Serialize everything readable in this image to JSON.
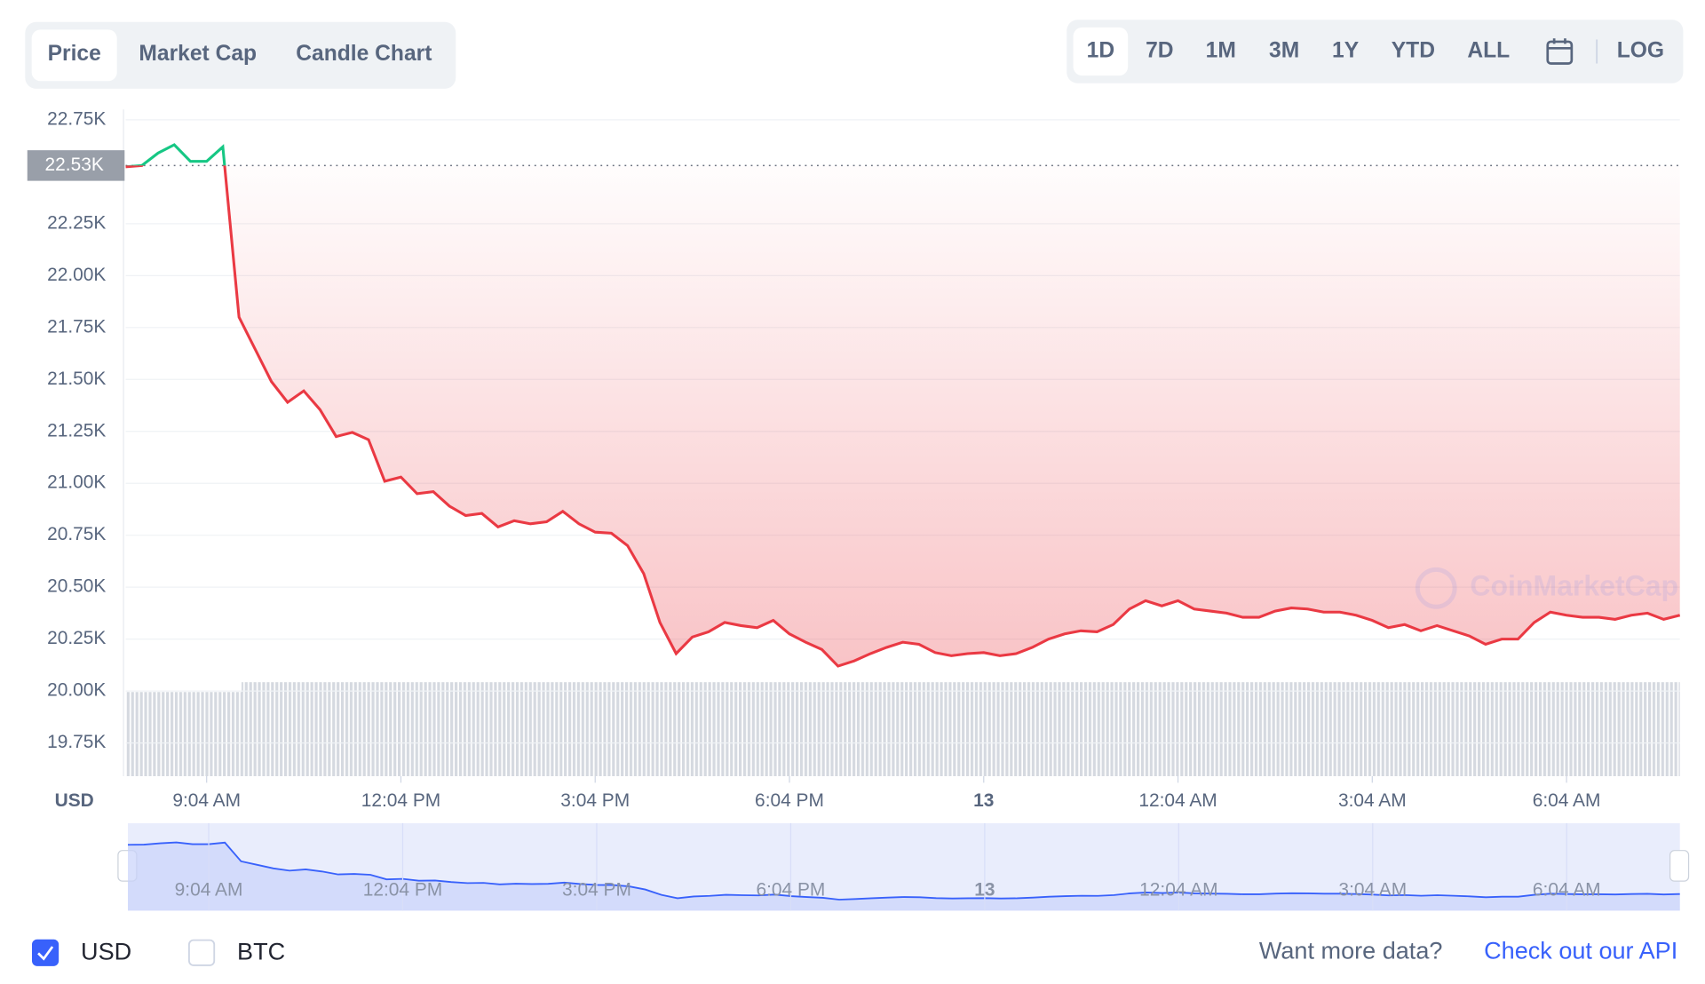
{
  "tabs": {
    "items": [
      "Price",
      "Market Cap",
      "Candle Chart"
    ],
    "active": 0
  },
  "ranges": {
    "items": [
      "1D",
      "7D",
      "1M",
      "3M",
      "1Y",
      "YTD",
      "ALL"
    ],
    "active": 0,
    "log": "LOG"
  },
  "chart_data": {
    "type": "line",
    "y_label": "USD",
    "watermark": "CoinMarketCap",
    "categories": [
      null,
      null,
      null,
      null,
      null,
      "9:04 AM",
      null,
      null,
      null,
      null,
      null,
      null,
      null,
      null,
      null,
      null,
      null,
      "12:04 PM",
      null,
      null,
      null,
      null,
      null,
      null,
      null,
      null,
      null,
      null,
      null,
      "3:04 PM",
      null,
      null,
      null,
      null,
      null,
      null,
      null,
      null,
      null,
      null,
      null,
      "6:04 PM",
      null,
      null,
      null,
      null,
      null,
      null,
      null,
      null,
      null,
      null,
      null,
      "13",
      null,
      null,
      null,
      null,
      null,
      null,
      null,
      null,
      null,
      null,
      null,
      "12:04 AM",
      null,
      null,
      null,
      null,
      null,
      null,
      null,
      null,
      null,
      null,
      null,
      "3:04 AM",
      null,
      null,
      null,
      null,
      null,
      null,
      null,
      null,
      null,
      null,
      null,
      "6:04 AM",
      null,
      null,
      null,
      null,
      null,
      null,
      null
    ],
    "values": [
      22524,
      22530,
      22590,
      22630,
      22550,
      22550,
      22620,
      21800,
      21645,
      21490,
      21390,
      21445,
      21355,
      21225,
      21245,
      21210,
      21010,
      21030,
      20950,
      20960,
      20890,
      20845,
      20855,
      20790,
      20820,
      20805,
      20815,
      20865,
      20805,
      20765,
      20760,
      20700,
      20565,
      20330,
      20180,
      20260,
      20285,
      20330,
      20315,
      20305,
      20340,
      20275,
      20235,
      20200,
      20120,
      20145,
      20180,
      20210,
      20235,
      20225,
      20185,
      20170,
      20180,
      20185,
      20170,
      20180,
      20210,
      20250,
      20275,
      20290,
      20285,
      20320,
      20395,
      20435,
      20410,
      20435,
      20395,
      20385,
      20375,
      20355,
      20355,
      20385,
      20400,
      20395,
      20380,
      20380,
      20365,
      20340,
      20305,
      20320,
      20290,
      20315,
      20290,
      20265,
      20225,
      20250,
      20250,
      20330,
      20380,
      20365,
      20355,
      20355,
      20345,
      20365,
      20375,
      20345,
      20365
    ],
    "reference": 22530,
    "reference_label": "22.53K",
    "colors": {
      "above": "#16c784",
      "below": "#ea3943",
      "navigator": "#3861fb"
    },
    "ylim": [
      19590,
      22800
    ],
    "yticks": [
      {
        "value": 19750,
        "label": "19.75K"
      },
      {
        "value": 20000,
        "label": "20.00K"
      },
      {
        "value": 20250,
        "label": "20.25K"
      },
      {
        "value": 20500,
        "label": "20.50K"
      },
      {
        "value": 20750,
        "label": "20.75K"
      },
      {
        "value": 21000,
        "label": "21.00K"
      },
      {
        "value": 21250,
        "label": "21.25K"
      },
      {
        "value": 21500,
        "label": "21.50K"
      },
      {
        "value": 21750,
        "label": "21.75K"
      },
      {
        "value": 22000,
        "label": "22.00K"
      },
      {
        "value": 22250,
        "label": "22.25K"
      },
      {
        "value": 22750,
        "label": "22.75K"
      }
    ],
    "grid": true
  },
  "footer": {
    "currencies": [
      {
        "label": "USD",
        "checked": true
      },
      {
        "label": "BTC",
        "checked": false
      }
    ],
    "prompt": "Want more data?",
    "link": "Check out our API"
  }
}
